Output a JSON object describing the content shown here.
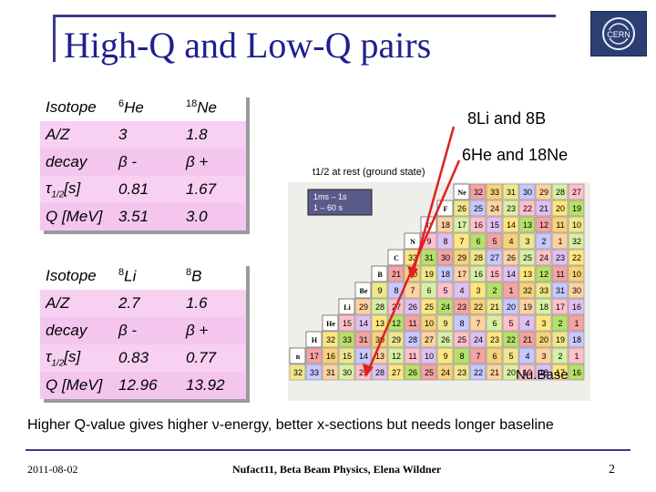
{
  "slide_title": "High-Q and Low-Q pairs",
  "table1": {
    "rows": [
      [
        "Isotope",
        "He",
        "Ne"
      ],
      [
        "A/Z",
        "3",
        "1.8"
      ],
      [
        "decay",
        "β -",
        "β +"
      ],
      [
        "[s]",
        "0.81",
        "1.67"
      ],
      [
        "Q [MeV]",
        "3.51",
        "3.0"
      ]
    ],
    "mass_numbers": [
      "6",
      "18"
    ]
  },
  "table2": {
    "rows": [
      [
        "Isotope",
        "Li",
        "B"
      ],
      [
        "A/Z",
        "2.7",
        "1.6"
      ],
      [
        "decay",
        "β -",
        "β +"
      ],
      [
        "[s]",
        "0.83",
        "0.77"
      ],
      [
        "Q [MeV]",
        "12.96",
        "13.92"
      ]
    ],
    "mass_numbers": [
      "8",
      "8"
    ]
  },
  "tau_symbol": "τ",
  "tau_sub": "1/2",
  "annotations": {
    "li_b": "8Li and 8B",
    "he_ne": "6He and 18Ne",
    "half_life_label": "t1/2 at rest (ground state)",
    "source_label": "Nu.Base"
  },
  "chart_legend": [
    "1ms – 1s",
    "1 – 60 s"
  ],
  "chart_elements": [
    "Ne",
    "F",
    "O",
    "N",
    "C",
    "B",
    "Be",
    "Li",
    "He",
    "H",
    "n"
  ],
  "chart_cells": [
    "32",
    "33",
    "31",
    "30",
    "29",
    "28",
    "27",
    "26",
    "25",
    "24",
    "23",
    "22",
    "21",
    "20",
    "19",
    "18",
    "17",
    "16",
    "15",
    "14",
    "13",
    "12",
    "11",
    "10",
    "9",
    "8",
    "7",
    "6",
    "5",
    "4",
    "3",
    "2",
    "1"
  ],
  "footer": {
    "summary": "Higher Q-value gives higher ν-energy, better x-sections but needs longer baseline",
    "date": "2011-08-02",
    "conference": "Nufact11, Beta Beam Physics, Elena Wildner",
    "page": "2"
  },
  "colors": {
    "title": "#1f1f8f",
    "table_row": "#f7d0f2",
    "arrow": "#e02020",
    "frame": "#3b3b8f"
  }
}
